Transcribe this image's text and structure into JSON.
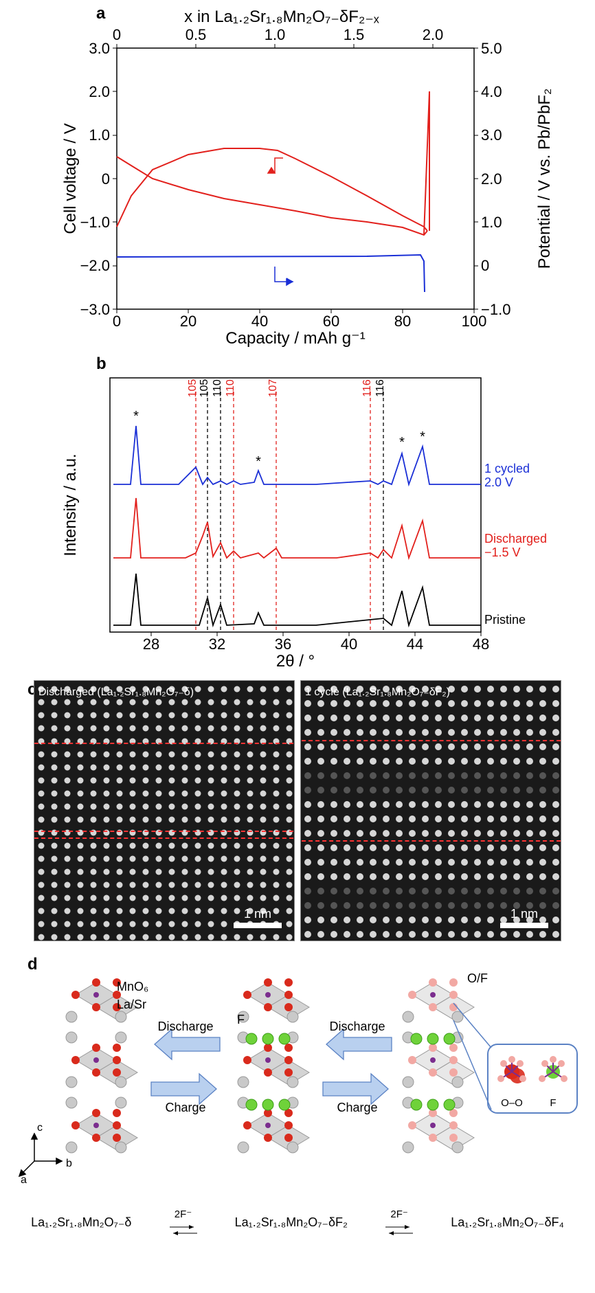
{
  "figure": {
    "a": {
      "label": "a",
      "top_axis_label": "x in La₁.₂Sr₁.₈Mn₂O₇₋δF₂₋ₓ",
      "top_ticks": [
        "0",
        "0.5",
        "1.0",
        "1.5",
        "2.0"
      ],
      "left_label": "Cell voltage / V",
      "left_ticks": [
        "3.0",
        "2.0",
        "1.0",
        "0",
        "−1.0",
        "−2.0",
        "−3.0"
      ],
      "right_label": "Potential / V vs. Pb/PbF₂",
      "right_ticks": [
        "5.0",
        "4.0",
        "3.0",
        "2.0",
        "1.0",
        "0",
        "−1.0"
      ],
      "bottom_label": "Capacity / mAh g⁻¹",
      "bottom_ticks": [
        "0",
        "20",
        "40",
        "60",
        "80",
        "100"
      ],
      "colors": {
        "red": "#e2201c",
        "blue": "#1a2fd6",
        "axis": "#000000"
      },
      "xlim": [
        0,
        100
      ],
      "ylim_left": [
        -3,
        3
      ],
      "red_discharge": [
        [
          0,
          0.5
        ],
        [
          4,
          0.3
        ],
        [
          10,
          0.0
        ],
        [
          20,
          -0.25
        ],
        [
          30,
          -0.45
        ],
        [
          40,
          -0.6
        ],
        [
          50,
          -0.75
        ],
        [
          60,
          -0.9
        ],
        [
          70,
          -1.0
        ],
        [
          80,
          -1.12
        ],
        [
          86,
          -1.3
        ],
        [
          87,
          -1.2
        ]
      ],
      "red_charge": [
        [
          87,
          -1.2
        ],
        [
          86,
          -1.1
        ],
        [
          80,
          -0.85
        ],
        [
          70,
          -0.4
        ],
        [
          60,
          0.05
        ],
        [
          50,
          0.45
        ],
        [
          45,
          0.65
        ],
        [
          40,
          0.7
        ],
        [
          30,
          0.7
        ],
        [
          20,
          0.55
        ],
        [
          10,
          0.2
        ],
        [
          4,
          -0.4
        ],
        [
          0,
          -1.1
        ]
      ],
      "red_spike": [
        [
          86,
          -1.3
        ],
        [
          87.5,
          2.0
        ],
        [
          87.5,
          -1.2
        ]
      ],
      "blue_curve": [
        [
          0,
          -1.8
        ],
        [
          70,
          -1.78
        ],
        [
          85,
          -1.75
        ],
        [
          86,
          -1.9
        ],
        [
          86.2,
          -2.6
        ]
      ]
    },
    "b": {
      "label": "b",
      "y_label": "Intensity / a.u.",
      "x_label": "2θ / °",
      "x_ticks": [
        "28",
        "32",
        "36",
        "40",
        "44",
        "48"
      ],
      "xlim": [
        25.5,
        48
      ],
      "red_indices": [
        {
          "label": "105",
          "x": 30.7
        },
        {
          "label": "110",
          "x": 33.0
        },
        {
          "label": "107",
          "x": 35.6
        },
        {
          "label": "116",
          "x": 41.3
        }
      ],
      "black_indices": [
        {
          "label": "105",
          "x": 31.4
        },
        {
          "label": "110",
          "x": 32.2
        },
        {
          "label": "116",
          "x": 42.1
        }
      ],
      "trace_labels": [
        {
          "text": "1 cycled",
          "color": "#1a2fd6"
        },
        {
          "text": "2.0 V",
          "color": "#1a2fd6"
        },
        {
          "text": "Discharged",
          "color": "#e2201c"
        },
        {
          "text": "−1.5 V",
          "color": "#e2201c"
        },
        {
          "text": "Pristine",
          "color": "#000000"
        }
      ],
      "colors": {
        "red": "#e2201c",
        "blue": "#1a2fd6",
        "black": "#000000"
      },
      "star": "*"
    },
    "c": {
      "label": "c",
      "left_caption": "Discharged (La₁.₂Sr₁.₈Mn₂O₇₋δ)",
      "right_caption": "1 cycle (La₁.₂Sr₁.₈Mn₂O₇₋δF₂)",
      "scale": "1 nm"
    },
    "d": {
      "label": "d",
      "species": [
        "MnO₆",
        "La/Sr",
        "F",
        "O/F",
        "O–O",
        "F"
      ],
      "arrows": [
        "Discharge",
        "Charge",
        "Discharge",
        "Charge"
      ],
      "arrow_fill": "#b9d0ef",
      "arrow_stroke": "#5b82c4",
      "rxn_left": "La₁.₂Sr₁.₈Mn₂O₇₋δ",
      "rxn_mid": "La₁.₂Sr₁.₈Mn₂O₇₋δF₂",
      "rxn_right": "La₁.₂Sr₁.₈Mn₂O₇₋δF₄",
      "rxn_ion": "2F⁻",
      "axes": [
        "a",
        "b",
        "c"
      ],
      "atom_colors": {
        "Mn": "#7b2d8e",
        "O": "#d92a1c",
        "LaSr": "#c9c9c9",
        "F": "#6fd23a",
        "OF_pale": "#f2a8a3",
        "octa": "#d4d4d4"
      }
    }
  }
}
